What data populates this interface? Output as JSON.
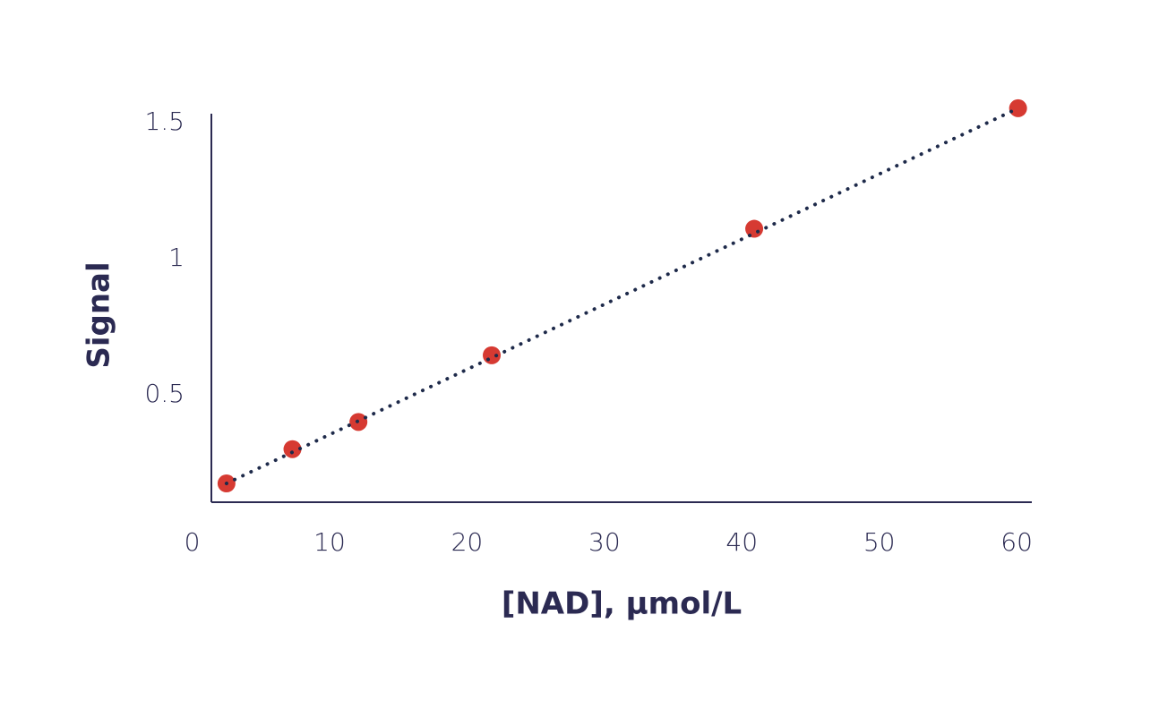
{
  "chart_data": {
    "type": "scatter",
    "x_label": "[NAD], µmol/L",
    "y_label": "Signal",
    "series": [
      {
        "color": "#d63a32",
        "x": [
          2.5,
          7.3,
          12.1,
          21.8,
          40.9,
          60.1
        ],
        "values": [
          0.174,
          0.3,
          0.4,
          0.645,
          1.11,
          1.553
        ]
      }
    ],
    "trend": {
      "color": "#1e2a4a",
      "style": "dotted",
      "x": [
        2.5,
        60.1
      ],
      "values": [
        0.174,
        1.553
      ]
    },
    "xlim": [
      1.4,
      61.1
    ],
    "xticks": [
      0,
      10,
      20,
      30,
      40,
      50,
      60
    ],
    "ylim": [
      0.105,
      1.533
    ],
    "yticks": [
      0.5,
      1,
      1.5
    ],
    "grid": false
  }
}
